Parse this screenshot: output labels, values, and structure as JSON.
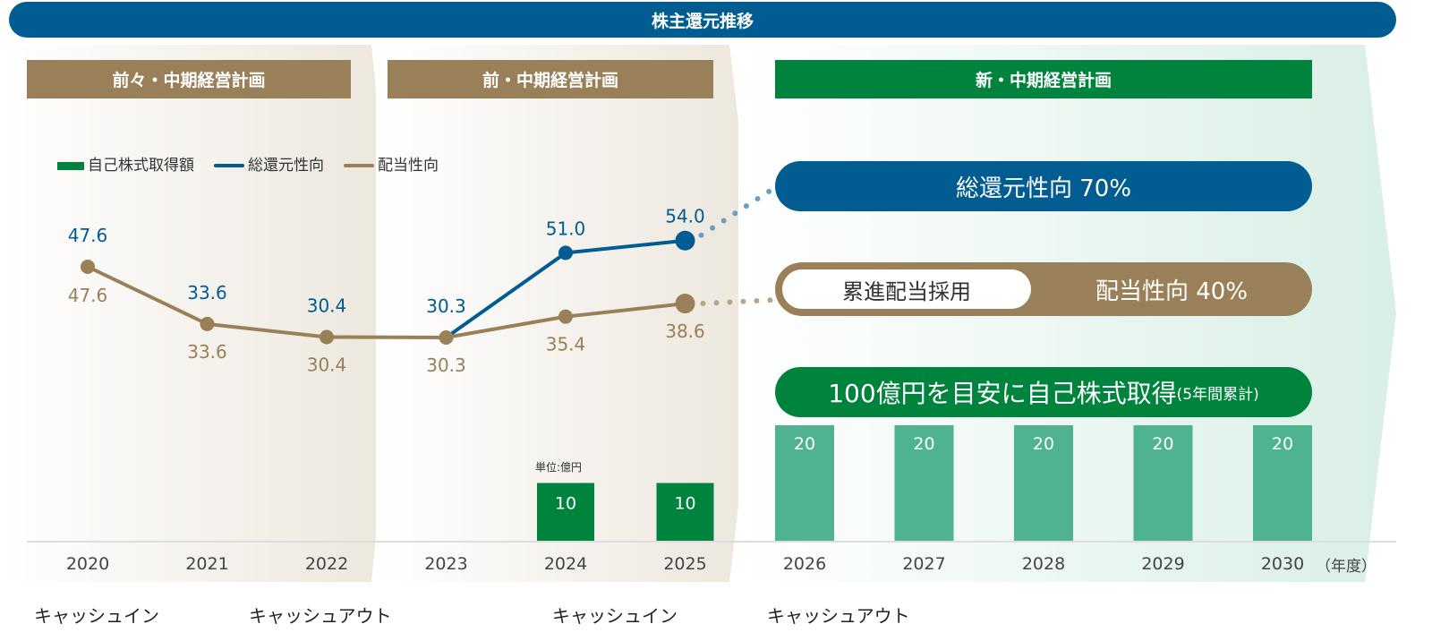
{
  "title": "株主還元推移",
  "plans": [
    "前々・中期経営計画",
    "前・中期経営計画",
    "新・中期経営計画"
  ],
  "legend": {
    "buyback": "自己株式取得額",
    "total_return": "総還元性向",
    "payout": "配当性向"
  },
  "targets": {
    "total_return": "総還元性向 70%",
    "progressive": "累進配当採用",
    "payout": "配当性向 40%",
    "buyback_main": "100億円を目安に自己株式取得",
    "buyback_note": "(5年間累計)"
  },
  "unit": "単位:億円",
  "year_unit": "（年度）",
  "cash_labels": [
    "キャッシュイン",
    "キャッシュアウト",
    "キャッシュイン",
    "キャッシュアウト"
  ],
  "colors": {
    "blue": "#005c91",
    "brown": "#9a8058",
    "green": "#00843d",
    "light_green": "#4fb38f"
  },
  "chart_data": {
    "type": "line+bar",
    "categories": [
      "2020",
      "2021",
      "2022",
      "2023",
      "2024",
      "2025",
      "2026",
      "2027",
      "2028",
      "2029",
      "2030"
    ],
    "series": [
      {
        "name": "総還元性向",
        "type": "line",
        "values": [
          47.6,
          33.6,
          30.4,
          30.3,
          51.0,
          54.0,
          null,
          null,
          null,
          null,
          null
        ]
      },
      {
        "name": "配当性向",
        "type": "line",
        "values": [
          47.6,
          33.6,
          30.4,
          30.3,
          35.4,
          38.6,
          null,
          null,
          null,
          null,
          null
        ]
      },
      {
        "name": "自己株式取得額",
        "type": "bar",
        "values": [
          null,
          null,
          null,
          null,
          10,
          10,
          20,
          20,
          20,
          20,
          20
        ]
      }
    ]
  }
}
